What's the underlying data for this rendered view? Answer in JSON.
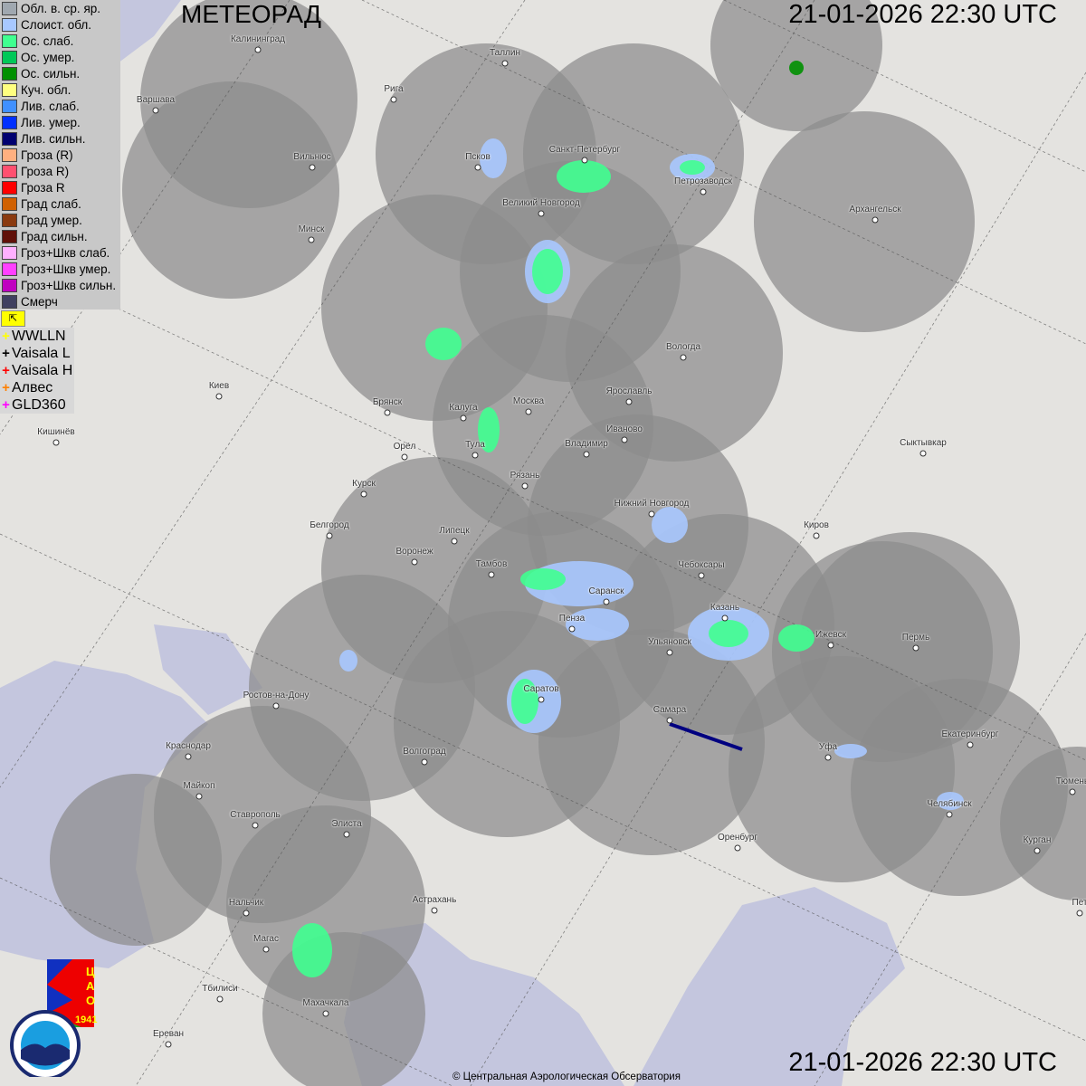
{
  "header": {
    "title": "МЕТЕОРАД",
    "datetime_top": "21-01-2026  22:30 UTC",
    "datetime_bottom": "21-01-2026  22:30 UTC"
  },
  "legend": [
    {
      "label": "Обл. в. ср. яр.",
      "color": "#a0a8b0"
    },
    {
      "label": "Слоист. обл.",
      "color": "#a8c8ff"
    },
    {
      "label": "Ос. слаб.",
      "color": "#40ff90"
    },
    {
      "label": "Ос. умер.",
      "color": "#00c858"
    },
    {
      "label": "Ос. сильн.",
      "color": "#009000"
    },
    {
      "label": "Куч. обл.",
      "color": "#ffff80"
    },
    {
      "label": "Лив. слаб.",
      "color": "#4090ff"
    },
    {
      "label": "Лив. умер.",
      "color": "#0030ff"
    },
    {
      "label": "Лив. сильн.",
      "color": "#000070"
    },
    {
      "label": "Гроза (R)",
      "color": "#ffb080"
    },
    {
      "label": "Гроза R)",
      "color": "#ff5070"
    },
    {
      "label": "Гроза R",
      "color": "#ff0000"
    },
    {
      "label": "Град слаб.",
      "color": "#d06000"
    },
    {
      "label": "Град умер.",
      "color": "#8a3a10"
    },
    {
      "label": "Град сильн.",
      "color": "#601008"
    },
    {
      "label": "Гроз+Шкв слаб.",
      "color": "#ffb0ff"
    },
    {
      "label": "Гроз+Шкв умер.",
      "color": "#ff40ff"
    },
    {
      "label": "Гроз+Шкв сильн.",
      "color": "#c000c0"
    },
    {
      "label": "Смерч",
      "color": "#404060"
    }
  ],
  "flag_icon": "flag-icon",
  "lightning": [
    {
      "label": "WWLLN",
      "color": "#ffff00"
    },
    {
      "label": "Vaisala L",
      "color": "#000000"
    },
    {
      "label": "Vaisala H",
      "color": "#ff0000"
    },
    {
      "label": "Алвес",
      "color": "#ff8000"
    },
    {
      "label": "GLD360",
      "color": "#ff00ff"
    }
  ],
  "cities": [
    "Калининград",
    "Таллин",
    "Рига",
    "Варшава",
    "Вильнюс",
    "Псков",
    "Санкт-Петербург",
    "Петрозаводск",
    "Архангельск",
    "Великий Новгород",
    "Минск",
    "Вологда",
    "Киев",
    "Брянск",
    "Калуга",
    "Москва",
    "Ярославль",
    "Иваново",
    "Кишинёв",
    "Орёл",
    "Тула",
    "Владимир",
    "Сыктывкар",
    "Рязань",
    "Курск",
    "Нижний Новгород",
    "Белгород",
    "Липецк",
    "Киров",
    "Воронеж",
    "Тамбов",
    "Чебоксары",
    "Саранск",
    "Казань",
    "Пенза",
    "Ульяновск",
    "Ижевск",
    "Пермь",
    "Саратов",
    "Ростов-на-Дону",
    "Самара",
    "Краснодар",
    "Волгоград",
    "Уфа",
    "Екатеринбург",
    "Майкоп",
    "Тюмень",
    "Челябинск",
    "Ставрополь",
    "Элиста",
    "Оренбург",
    "Курган",
    "Астрахань",
    "Нальчик",
    "Пет",
    "Магас",
    "Тбилиси",
    "Махачкала",
    "Ереван"
  ],
  "logos": {
    "cao": "ЦАО 1941",
    "roshydromet": "РОСГИДРОМЕТ ROSHYDROMET"
  },
  "copyright": "© Центральная Аэрологическая Обсерватория"
}
